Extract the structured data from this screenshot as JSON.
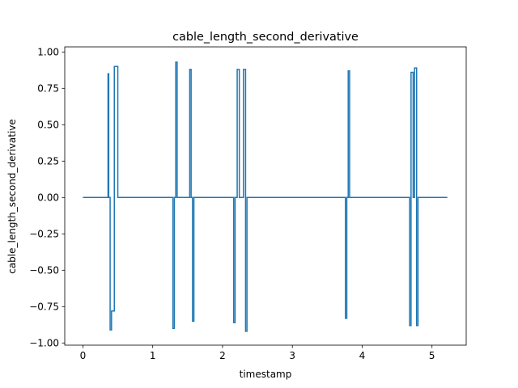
{
  "chart_data": {
    "type": "line",
    "title": "cable_length_second_derivative",
    "xlabel": "timestamp",
    "ylabel": "cable_length_second_derivative",
    "xlim": [
      -0.26,
      5.49
    ],
    "ylim": [
      -1.015,
      1.035
    ],
    "x_ticks": [
      0,
      1,
      2,
      3,
      4,
      5
    ],
    "x_tick_labels": [
      "0",
      "1",
      "2",
      "3",
      "4",
      "5"
    ],
    "y_ticks": [
      -1.0,
      -0.75,
      -0.5,
      -0.25,
      0.0,
      0.25,
      0.5,
      0.75,
      1.0
    ],
    "y_tick_labels": [
      "−1.00",
      "−0.75",
      "−0.50",
      "−0.25",
      "0.00",
      "0.25",
      "0.50",
      "0.75",
      "1.00"
    ],
    "grid": false,
    "step": "post",
    "color": "#1f77b4",
    "series": [
      {
        "x": [
          0.0,
          0.36,
          0.37,
          0.39,
          0.41,
          0.45,
          0.47,
          0.5,
          1.29,
          1.31,
          1.33,
          1.35,
          1.53,
          1.55,
          1.57,
          1.59,
          2.16,
          2.18,
          2.21,
          2.24,
          2.3,
          2.33,
          2.35,
          3.76,
          3.78,
          3.8,
          3.82,
          4.68,
          4.7,
          4.73,
          4.75,
          4.78,
          4.8,
          4.82,
          5.22
        ],
        "y": [
          0.0,
          0.85,
          0.0,
          -0.91,
          -0.78,
          0.9,
          0.9,
          0.0,
          -0.9,
          0.0,
          0.93,
          0.0,
          0.88,
          0.0,
          -0.85,
          0.0,
          -0.86,
          0.0,
          0.88,
          0.0,
          0.88,
          -0.92,
          0.0,
          -0.83,
          0.0,
          0.87,
          0.0,
          -0.88,
          0.86,
          0.0,
          0.89,
          -0.88,
          0.0,
          0.0,
          0.0
        ]
      }
    ]
  }
}
